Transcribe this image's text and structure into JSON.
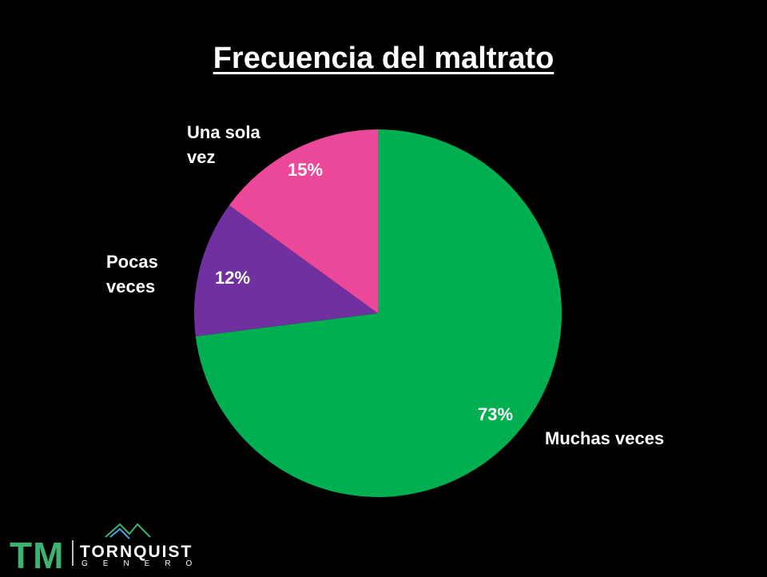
{
  "chart_data": {
    "type": "pie",
    "title": "Frecuencia del maltrato",
    "categories": [
      "Muchas veces",
      "Pocas veces",
      "Una sola vez"
    ],
    "values": [
      73,
      12,
      15
    ],
    "value_labels": [
      "73%",
      "12%",
      "15%"
    ],
    "colors": [
      "#00b050",
      "#7030a0",
      "#ec4899"
    ]
  },
  "logo": {
    "mark": "TM",
    "name": "TORNQUIST",
    "sub": "GENERO"
  }
}
